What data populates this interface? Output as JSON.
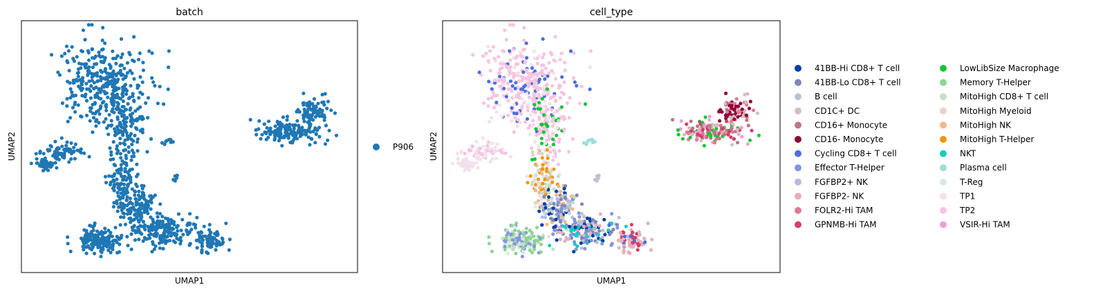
{
  "chart_data": [
    {
      "type": "scatter",
      "title": "batch",
      "xlabel": "UMAP1",
      "ylabel": "UMAP2",
      "grid": false,
      "ticks": false,
      "legend_position": "right",
      "legend": [
        {
          "name": "P906",
          "color": "#1f77b4"
        }
      ]
    },
    {
      "type": "scatter",
      "title": "cell_type",
      "xlabel": "UMAP1",
      "ylabel": "UMAP2",
      "grid": false,
      "ticks": false,
      "legend_position": "right",
      "legend": [
        {
          "name": "41BB-Hi CD8+ T cell",
          "color": "#023fa5"
        },
        {
          "name": "41BB-Lo CD8+ T cell",
          "color": "#7d87b9"
        },
        {
          "name": "B cell",
          "color": "#bec1d4"
        },
        {
          "name": "CD1C+ DC",
          "color": "#d6bcc0"
        },
        {
          "name": "CD16+ Monocyte",
          "color": "#bb7784"
        },
        {
          "name": "CD16- Monocyte",
          "color": "#8e063b"
        },
        {
          "name": "Cycling CD8+ T cell",
          "color": "#4a6fe3"
        },
        {
          "name": "Effector T-Helper",
          "color": "#8595e1"
        },
        {
          "name": "FGFBP2+ NK",
          "color": "#b5bbe3"
        },
        {
          "name": "FGFBP2- NK",
          "color": "#e6afb9"
        },
        {
          "name": "FOLR2-Hi TAM",
          "color": "#e07b91"
        },
        {
          "name": "GPNMB-Hi TAM",
          "color": "#d33f6a"
        },
        {
          "name": "LowLibSize Macrophage",
          "color": "#11c638"
        },
        {
          "name": "Memory T-Helper",
          "color": "#8dd593"
        },
        {
          "name": "MitoHigh CD8+ T cell",
          "color": "#c6dec7"
        },
        {
          "name": "MitoHigh Myeloid",
          "color": "#ead3c6"
        },
        {
          "name": "MitoHigh NK",
          "color": "#f0b98d"
        },
        {
          "name": "MitoHigh T-Helper",
          "color": "#ef9708"
        },
        {
          "name": "NKT",
          "color": "#0fcfc0"
        },
        {
          "name": "Plasma cell",
          "color": "#9cded6"
        },
        {
          "name": "T-Reg",
          "color": "#d5eae7"
        },
        {
          "name": "TP1",
          "color": "#f3e1eb"
        },
        {
          "name": "TP2",
          "color": "#f6c4e1"
        },
        {
          "name": "VSIR-Hi TAM",
          "color": "#f79cd4"
        }
      ]
    }
  ]
}
